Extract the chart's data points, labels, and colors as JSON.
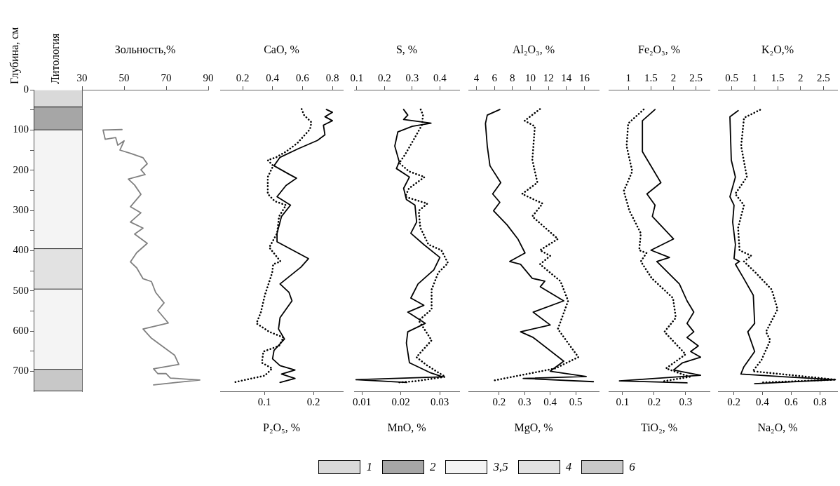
{
  "chart_data": [
    {
      "type": "bar",
      "stacked": true,
      "title": "Литология",
      "ylabel": "Глубина, см",
      "categories": [
        null
      ],
      "ylim": [
        750,
        0
      ],
      "yticks": [
        0,
        {
          "value": 50,
          "label": null
        },
        100,
        {
          "value": 150,
          "label": null
        },
        200,
        {
          "value": 250,
          "label": null
        },
        300,
        {
          "value": 350,
          "label": null
        },
        400,
        {
          "value": 450,
          "label": null
        },
        500,
        {
          "value": 550,
          "label": null
        },
        600,
        {
          "value": 650,
          "label": null
        },
        700
      ],
      "tick_labels": "y",
      "grid": false,
      "legend": "bottom",
      "series": [
        {
          "name": "1",
          "color": "#d9d9d9",
          "values": [
            43
          ]
        },
        {
          "name": "2",
          "color": "#a6a6a6",
          "values": [
            57
          ]
        },
        {
          "name": "3,5",
          "color": "#f4f4f4",
          "values": [
            296
          ]
        },
        {
          "name": "4",
          "color": "#e2e2e2",
          "values": [
            100
          ]
        },
        {
          "color": "#f4f4f4",
          "values": [
            200
          ]
        },
        {
          "name": "6",
          "color": "#c8c8c8",
          "values": [
            54
          ]
        }
      ]
    },
    {
      "type": "line",
      "xlabel": "Зольность,%",
      "xlim": [
        30,
        90
      ],
      "xticks": [
        30,
        50,
        70,
        90
      ],
      "ylim": [
        750,
        0
      ],
      "tick_labels": "x",
      "grid": false,
      "series": [
        {
          "color": "#808080",
          "line_style": "solid",
          "x": [
            49,
            40,
            41,
            46,
            47,
            50,
            48,
            53,
            59,
            61,
            58,
            60,
            52,
            55,
            58,
            53,
            58,
            53,
            59,
            55,
            61,
            56,
            53,
            56,
            59,
            63,
            65,
            69,
            66,
            71,
            59,
            63,
            69,
            74,
            76,
            64,
            66,
            70,
            72,
            86,
            64
          ],
          "values": [
            99,
            100,
            123,
            119,
            138,
            127,
            150,
            158,
            169,
            184,
            199,
            211,
            222,
            237,
            260,
            291,
            306,
            329,
            344,
            359,
            382,
            405,
            428,
            443,
            470,
            477,
            504,
            530,
            549,
            580,
            595,
            618,
            641,
            660,
            683,
            694,
            706,
            706,
            717,
            722,
            734
          ]
        }
      ]
    },
    {
      "type": "line",
      "x2label": "CaO, %",
      "x2lim": [
        0.05,
        0.87
      ],
      "x2ticks": [
        0.2,
        0.4,
        0.6,
        0.8
      ],
      "xlabel": "P₂O₅, %",
      "xlim": [
        0.01,
        0.26
      ],
      "xticks": [
        0.1,
        0.2
      ],
      "ylim": [
        750,
        0
      ],
      "tick_labels": "x",
      "grid": false,
      "series": [
        {
          "color": "#000000",
          "axis": "x2",
          "line_style": "solid",
          "x": [
            0.76,
            0.8,
            0.75,
            0.8,
            0.74,
            0.75,
            0.7,
            0.57,
            0.45,
            0.41,
            0.51,
            0.56,
            0.49,
            0.43,
            0.52,
            0.46,
            0.43,
            0.43,
            0.57,
            0.64,
            0.59,
            0.45,
            0.51,
            0.53,
            0.45,
            0.44,
            0.48,
            0.41,
            0.4,
            0.45,
            0.55,
            0.46,
            0.55,
            0.45
          ],
          "values": [
            49,
            56,
            67,
            77,
            88,
            112,
            126,
            147,
            168,
            189,
            210,
            220,
            238,
            266,
            287,
            315,
            357,
            378,
            406,
            420,
            441,
            483,
            504,
            525,
            567,
            595,
            620,
            648,
            669,
            686,
            697,
            707,
            718,
            728
          ]
        },
        {
          "color": "#000000",
          "line_style": "dotted",
          "x": [
            0.176,
            0.181,
            0.196,
            0.193,
            0.167,
            0.144,
            0.124,
            0.107,
            0.118,
            0.107,
            0.107,
            0.121,
            0.144,
            0.13,
            0.126,
            0.11,
            0.133,
            0.118,
            0.116,
            0.101,
            0.093,
            0.084,
            0.11,
            0.139,
            0.13,
            0.098,
            0.095,
            0.116,
            0.101,
            0.063,
            0.037
          ],
          "values": [
            48,
            63,
            81,
            98,
            133,
            154,
            168,
            175,
            189,
            217,
            259,
            277,
            287,
            315,
            357,
            392,
            427,
            434,
            455,
            511,
            553,
            581,
            602,
            616,
            637,
            651,
            679,
            693,
            711,
            721,
            728
          ]
        }
      ]
    },
    {
      "type": "line",
      "x2label": "S, %",
      "x2lim": [
        0.09,
        0.47
      ],
      "x2ticks": [
        0.1,
        0.2,
        0.3,
        0.4
      ],
      "xlabel": "MnO, %",
      "xlim": [
        0.008,
        0.035
      ],
      "xticks": [
        0.01,
        0.02,
        0.03
      ],
      "ylim": [
        750,
        0
      ],
      "tick_labels": "x",
      "grid": false,
      "series": [
        {
          "color": "#000000",
          "axis": "x2",
          "line_style": "solid",
          "x": [
            0.269,
            0.284,
            0.269,
            0.368,
            0.3,
            0.248,
            0.237,
            0.253,
            0.243,
            0.29,
            0.269,
            0.279,
            0.31,
            0.316,
            0.295,
            0.342,
            0.4,
            0.378,
            0.321,
            0.295,
            0.342,
            0.284,
            0.347,
            0.284,
            0.279,
            0.29,
            0.363,
            0.41,
            0.097,
            0.28
          ],
          "values": [
            49,
            63,
            74,
            83,
            91,
            105,
            140,
            179,
            196,
            217,
            245,
            273,
            287,
            329,
            357,
            385,
            417,
            448,
            483,
            518,
            536,
            553,
            581,
            602,
            630,
            679,
            703,
            714,
            721,
            728
          ]
        },
        {
          "color": "#000000",
          "line_style": "dotted",
          "x": [
            0.0251,
            0.0257,
            0.0254,
            0.0236,
            0.0211,
            0.0196,
            0.0221,
            0.0261,
            0.0221,
            0.0211,
            0.0268,
            0.0246,
            0.025,
            0.0271,
            0.0304,
            0.0321,
            0.0296,
            0.0279,
            0.0279,
            0.0246,
            0.0279,
            0.024,
            0.0268,
            0.0314,
            0.0236,
            0.0193
          ],
          "values": [
            49,
            63,
            88,
            119,
            161,
            182,
            203,
            217,
            245,
            266,
            283,
            301,
            343,
            385,
            399,
            431,
            455,
            497,
            546,
            574,
            623,
            665,
            686,
            714,
            725,
            728
          ]
        }
      ]
    },
    {
      "type": "line",
      "x2label": "Al₂O₃, %",
      "x2lim": [
        3.1,
        17.6
      ],
      "x2ticks": [
        4,
        6,
        8,
        10,
        12,
        14,
        16
      ],
      "xlabel": "MgO, %",
      "xlim": [
        0.08,
        0.59
      ],
      "xticks": [
        0.2,
        0.3,
        0.4,
        0.5
      ],
      "ylim": [
        750,
        0
      ],
      "tick_labels": "x",
      "grid": false,
      "series": [
        {
          "color": "#000000",
          "axis": "x2",
          "line_style": "solid",
          "x": [
            6.6,
            5.2,
            5.0,
            5.2,
            5.5,
            6.7,
            5.8,
            6.6,
            5.9,
            7.4,
            8.6,
            9.4,
            7.7,
            8.9,
            10.2,
            11.6,
            11.1,
            13.7,
            10.3,
            12.2,
            8.9,
            10.3,
            13.7,
            12.2,
            16.2,
            9.2,
            17.0
          ],
          "values": [
            49,
            63,
            84,
            140,
            189,
            231,
            259,
            280,
            301,
            336,
            371,
            406,
            427,
            434,
            469,
            476,
            490,
            525,
            553,
            585,
            602,
            616,
            675,
            700,
            713,
            718,
            726
          ]
        },
        {
          "color": "#000000",
          "line_style": "dotted",
          "x": [
            0.36,
            0.3,
            0.34,
            0.33,
            0.35,
            0.29,
            0.37,
            0.33,
            0.43,
            0.36,
            0.4,
            0.36,
            0.44,
            0.47,
            0.43,
            0.51,
            0.42,
            0.18
          ],
          "values": [
            48,
            77,
            91,
            175,
            231,
            259,
            283,
            315,
            371,
            399,
            413,
            434,
            476,
            525,
            595,
            665,
            693,
            723
          ]
        }
      ]
    },
    {
      "type": "line",
      "x2label": "Fe₂O₃, %",
      "x2lim": [
        0.56,
        2.8
      ],
      "x2ticks": [
        1,
        1.5,
        2,
        2.5
      ],
      "xlabel": "TiO₂, %",
      "xlim": [
        0.056,
        0.376
      ],
      "xticks": [
        0.1,
        0.2,
        0.3
      ],
      "ylim": [
        750,
        0
      ],
      "tick_labels": "x",
      "grid": false,
      "series": [
        {
          "color": "#000000",
          "axis": "x2",
          "line_style": "solid",
          "x": [
            1.59,
            1.31,
            1.31,
            1.72,
            1.41,
            1.59,
            1.53,
            2.0,
            1.5,
            1.91,
            1.63,
            2.13,
            2.3,
            2.45,
            2.3,
            2.45,
            2.3,
            2.55,
            2.38,
            2.6,
            2.2,
            2.0,
            2.6,
            0.8,
            2.3
          ],
          "values": [
            49,
            77,
            154,
            231,
            259,
            287,
            315,
            371,
            399,
            417,
            427,
            483,
            525,
            553,
            581,
            602,
            616,
            637,
            651,
            665,
            679,
            697,
            710,
            724,
            729
          ]
        },
        {
          "color": "#000000",
          "line_style": "dotted",
          "x": [
            0.167,
            0.118,
            0.113,
            0.131,
            0.104,
            0.122,
            0.158,
            0.153,
            0.176,
            0.158,
            0.193,
            0.26,
            0.269,
            0.233,
            0.3,
            0.238,
            0.313,
            0.229
          ],
          "values": [
            49,
            84,
            140,
            203,
            252,
            301,
            357,
            399,
            406,
            427,
            469,
            518,
            567,
            602,
            658,
            693,
            714,
            725
          ]
        }
      ]
    },
    {
      "type": "line",
      "x2label": "K₂O,%",
      "x2lim": [
        0.2,
        2.8
      ],
      "x2ticks": [
        0.5,
        1,
        1.5,
        2,
        2.5
      ],
      "xlabel": "Na₂O, %",
      "xlim": [
        0.09,
        0.92
      ],
      "xticks": [
        0.2,
        0.4,
        0.6,
        0.8
      ],
      "ylim": [
        750,
        0
      ],
      "tick_labels": "x",
      "grid": false,
      "series": [
        {
          "color": "#000000",
          "axis": "x2",
          "line_style": "solid",
          "x": [
            0.64,
            0.46,
            0.49,
            0.58,
            0.46,
            0.55,
            0.52,
            0.58,
            0.55,
            0.67,
            0.58,
            0.76,
            0.97,
            1.0,
            0.85,
            1.0,
            0.76,
            0.7,
            1.67,
            2.76,
            1.0
          ],
          "values": [
            52,
            67,
            175,
            217,
            266,
            287,
            329,
            385,
            420,
            427,
            434,
            469,
            511,
            581,
            602,
            651,
            690,
            707,
            714,
            721,
            731
          ]
        },
        {
          "color": "#000000",
          "line_style": "dotted",
          "x": [
            0.383,
            0.271,
            0.251,
            0.291,
            0.21,
            0.271,
            0.23,
            0.24,
            0.322,
            0.271,
            0.352,
            0.464,
            0.505,
            0.424,
            0.454,
            0.393,
            0.332,
            0.911,
            0.4
          ],
          "values": [
            50,
            70,
            140,
            217,
            259,
            287,
            343,
            399,
            413,
            427,
            455,
            497,
            546,
            602,
            623,
            672,
            700,
            721,
            728
          ]
        }
      ]
    }
  ]
}
